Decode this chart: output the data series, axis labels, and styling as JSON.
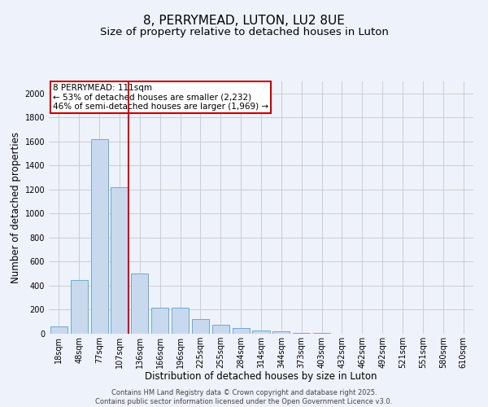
{
  "title1": "8, PERRYMEAD, LUTON, LU2 8UE",
  "title2": "Size of property relative to detached houses in Luton",
  "xlabel": "Distribution of detached houses by size in Luton",
  "ylabel": "Number of detached properties",
  "categories": [
    "18sqm",
    "48sqm",
    "77sqm",
    "107sqm",
    "136sqm",
    "166sqm",
    "196sqm",
    "225sqm",
    "255sqm",
    "284sqm",
    "314sqm",
    "344sqm",
    "373sqm",
    "403sqm",
    "432sqm",
    "462sqm",
    "492sqm",
    "521sqm",
    "551sqm",
    "580sqm",
    "610sqm"
  ],
  "values": [
    60,
    450,
    1620,
    1220,
    500,
    215,
    215,
    120,
    75,
    50,
    30,
    20,
    10,
    5,
    2,
    1,
    1,
    0,
    0,
    0,
    0
  ],
  "bar_color": "#c8d9ee",
  "bar_edge_color": "#6aaad4",
  "red_line_x": 3.425,
  "annotation_title": "8 PERRYMEAD: 111sqm",
  "annotation_line1": "← 53% of detached houses are smaller (2,232)",
  "annotation_line2": "46% of semi-detached houses are larger (1,969) →",
  "annotation_box_color": "#ffffff",
  "annotation_box_edge": "#cc0000",
  "red_line_color": "#cc0000",
  "ylim": [
    0,
    2100
  ],
  "yticks": [
    0,
    200,
    400,
    600,
    800,
    1000,
    1200,
    1400,
    1600,
    1800,
    2000
  ],
  "grid_color": "#cccccc",
  "background_color": "#eef2fa",
  "footer1": "Contains HM Land Registry data © Crown copyright and database right 2025.",
  "footer2": "Contains public sector information licensed under the Open Government Licence v3.0.",
  "title_fontsize": 11,
  "subtitle_fontsize": 9.5,
  "axis_label_fontsize": 8.5,
  "tick_fontsize": 7,
  "annotation_fontsize": 7.5,
  "footer_fontsize": 6
}
